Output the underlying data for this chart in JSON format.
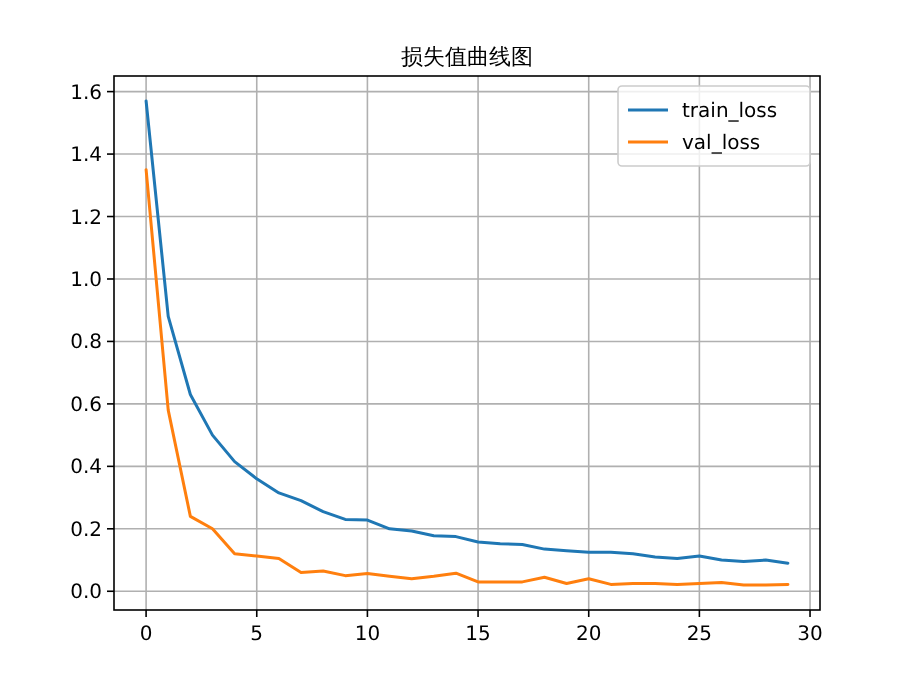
{
  "chart_data": {
    "type": "line",
    "title": "损失值曲线图",
    "x": [
      0,
      1,
      2,
      3,
      4,
      5,
      6,
      7,
      8,
      9,
      10,
      11,
      12,
      13,
      14,
      15,
      16,
      17,
      18,
      19,
      20,
      21,
      22,
      23,
      24,
      25,
      26,
      27,
      28,
      29
    ],
    "series": [
      {
        "name": "train_loss",
        "color": "#1f77b4",
        "values": [
          1.57,
          0.88,
          0.63,
          0.5,
          0.415,
          0.36,
          0.315,
          0.29,
          0.255,
          0.23,
          0.228,
          0.2,
          0.193,
          0.178,
          0.175,
          0.158,
          0.152,
          0.15,
          0.135,
          0.13,
          0.125,
          0.125,
          0.12,
          0.11,
          0.105,
          0.113,
          0.1,
          0.095,
          0.1,
          0.09
        ]
      },
      {
        "name": "val_loss",
        "color": "#ff7f0e",
        "values": [
          1.35,
          0.58,
          0.24,
          0.2,
          0.12,
          0.113,
          0.105,
          0.06,
          0.065,
          0.05,
          0.057,
          0.048,
          0.04,
          0.048,
          0.058,
          0.03,
          0.03,
          0.03,
          0.045,
          0.025,
          0.04,
          0.022,
          0.025,
          0.025,
          0.022,
          0.025,
          0.028,
          0.02,
          0.02,
          0.022
        ]
      }
    ],
    "xlim": [
      -1.45,
      30.45
    ],
    "ylim": [
      -0.06,
      1.65
    ],
    "xticks": [
      0,
      5,
      10,
      15,
      20,
      25,
      30
    ],
    "yticks": [
      {
        "value": 0,
        "label": "0.0"
      },
      {
        "value": 0.2,
        "label": "0.2"
      },
      {
        "value": 0.4,
        "label": "0.4"
      },
      {
        "value": 0.6,
        "label": "0.6"
      },
      {
        "value": 0.8,
        "label": "0.8"
      },
      {
        "value": 1,
        "label": "1.0"
      },
      {
        "value": 1.2,
        "label": "1.2"
      },
      {
        "value": 1.4,
        "label": "1.4"
      },
      {
        "value": 1.6,
        "label": "1.6"
      }
    ],
    "grid": true,
    "legend": "top right"
  }
}
